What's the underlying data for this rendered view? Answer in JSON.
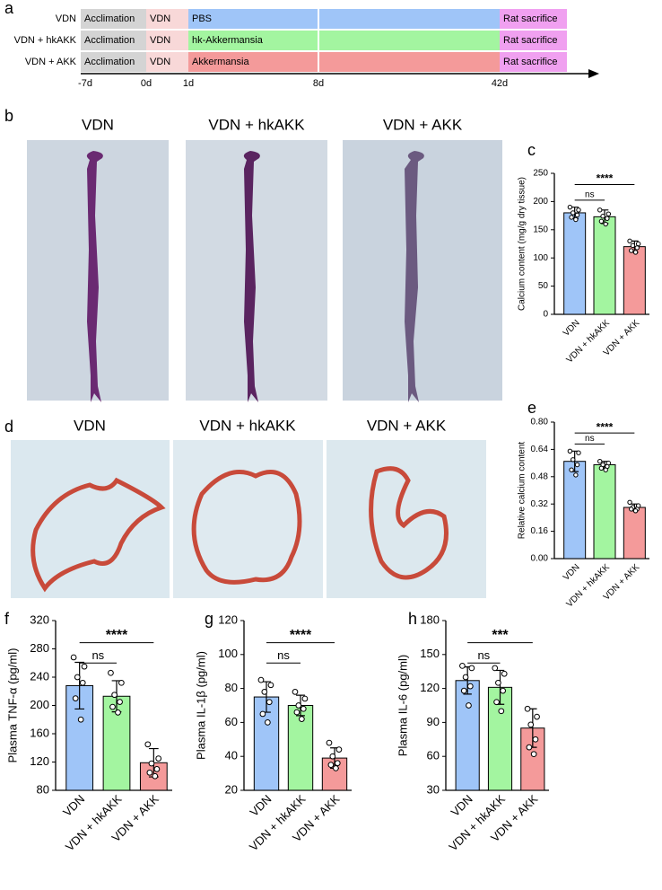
{
  "panel_labels": [
    "a",
    "b",
    "c",
    "d",
    "e",
    "f",
    "g",
    "h"
  ],
  "timeline": {
    "rows": [
      {
        "label": "VDN",
        "phases": [
          "Acclimation",
          "VDN",
          "PBS",
          "Rat sacrifice"
        ],
        "color": "#9fc5f8"
      },
      {
        "label": "VDN + hkAKK",
        "phases": [
          "Acclimation",
          "VDN",
          "hk-Akkermansia",
          "Rat sacrifice"
        ],
        "color": "#a3f5a0"
      },
      {
        "label": "VDN + AKK",
        "phases": [
          "Acclimation",
          "VDN",
          "Akkermansia",
          "Rat sacrifice"
        ],
        "color": "#f49a9a"
      }
    ],
    "ticks": [
      "-7d",
      "0d",
      "1d",
      "8d",
      "42d"
    ]
  },
  "photos_b": {
    "titles": [
      "VDN",
      "VDN + hkAKK",
      "VDN + AKK"
    ]
  },
  "photos_d": {
    "titles": [
      "VDN",
      "VDN + hkAKK",
      "VDN + AKK"
    ]
  },
  "chart_data": [
    {
      "type": "bar",
      "ylabel": "Calcium content (mg/g dry tissue)",
      "categories": [
        "VDN",
        "VDN + hkAKK",
        "VDN + AKK"
      ],
      "values": [
        180,
        173,
        120
      ],
      "errors": [
        10,
        12,
        10
      ],
      "points": [
        [
          190,
          185,
          180,
          176,
          172,
          168
        ],
        [
          185,
          178,
          174,
          170,
          165,
          160
        ],
        [
          130,
          125,
          122,
          118,
          113,
          110
        ]
      ],
      "colors": [
        "#9fc5f8",
        "#a3f5a0",
        "#f49a9a"
      ],
      "ylim": [
        0,
        250
      ],
      "yticks": [
        0,
        50,
        100,
        150,
        200,
        250
      ],
      "annotations": [
        "ns",
        "****"
      ]
    },
    {
      "type": "bar",
      "ylabel": "Relative calcium content",
      "categories": [
        "VDN",
        "VDN + hkAKK",
        "VDN + AKK"
      ],
      "values": [
        0.57,
        0.55,
        0.3
      ],
      "errors": [
        0.06,
        0.02,
        0.02
      ],
      "points": [
        [
          0.63,
          0.62,
          0.58,
          0.55,
          0.52,
          0.49
        ],
        [
          0.57,
          0.56,
          0.55,
          0.54,
          0.53,
          0.52
        ],
        [
          0.33,
          0.31,
          0.3,
          0.29,
          0.29,
          0.28
        ]
      ],
      "colors": [
        "#9fc5f8",
        "#a3f5a0",
        "#f49a9a"
      ],
      "ylim": [
        0,
        0.8
      ],
      "yticks": [
        {
          "value": 0,
          "label": "0.00"
        },
        {
          "value": 0.16,
          "label": "0.16"
        },
        {
          "value": 0.32,
          "label": "0.32"
        },
        {
          "value": 0.48,
          "label": "0.48"
        },
        {
          "value": 0.64,
          "label": "0.64"
        },
        {
          "value": 0.8,
          "label": "0.80"
        }
      ],
      "annotations": [
        "ns",
        "****"
      ]
    },
    {
      "type": "bar",
      "ylabel": "Plasma TNF-α (pg/ml)",
      "categories": [
        "VDN",
        "VDN + hkAKK",
        "VDN + AKK"
      ],
      "values": [
        228,
        213,
        119
      ],
      "errors": [
        33,
        22,
        20
      ],
      "points": [
        [
          268,
          255,
          240,
          232,
          210,
          180
        ],
        [
          246,
          232,
          215,
          205,
          198,
          190
        ],
        [
          145,
          125,
          118,
          110,
          105,
          100
        ]
      ],
      "colors": [
        "#9fc5f8",
        "#a3f5a0",
        "#f49a9a"
      ],
      "ylim": [
        80,
        320
      ],
      "yticks": [
        80,
        120,
        160,
        200,
        240,
        280,
        320
      ],
      "annotations": [
        "ns",
        "****"
      ]
    },
    {
      "type": "bar",
      "ylabel": "Plasma IL-1β (pg/ml)",
      "categories": [
        "VDN",
        "VDN + hkAKK",
        "VDN + AKK"
      ],
      "values": [
        75,
        70,
        39
      ],
      "errors": [
        9,
        6,
        6
      ],
      "points": [
        [
          85,
          82,
          78,
          72,
          65,
          60
        ],
        [
          78,
          74,
          70,
          68,
          66,
          62
        ],
        [
          48,
          44,
          40,
          36,
          35,
          33
        ]
      ],
      "colors": [
        "#9fc5f8",
        "#a3f5a0",
        "#f49a9a"
      ],
      "ylim": [
        20,
        120
      ],
      "yticks": [
        20,
        40,
        60,
        80,
        100,
        120
      ],
      "annotations": [
        "ns",
        "****"
      ]
    },
    {
      "type": "bar",
      "ylabel": "Plasma IL-6 (pg/ml)",
      "categories": [
        "VDN",
        "VDN + hkAKK",
        "VDN + AKK"
      ],
      "values": [
        127,
        121,
        85
      ],
      "errors": [
        12,
        15,
        17
      ],
      "points": [
        [
          140,
          138,
          130,
          122,
          118,
          105
        ],
        [
          138,
          133,
          125,
          118,
          108,
          100
        ],
        [
          102,
          95,
          88,
          75,
          68,
          62
        ]
      ],
      "colors": [
        "#9fc5f8",
        "#a3f5a0",
        "#f49a9a"
      ],
      "ylim": [
        30,
        180
      ],
      "yticks": [
        30,
        60,
        90,
        120,
        150,
        180
      ],
      "annotations": [
        "ns",
        "***"
      ]
    }
  ]
}
